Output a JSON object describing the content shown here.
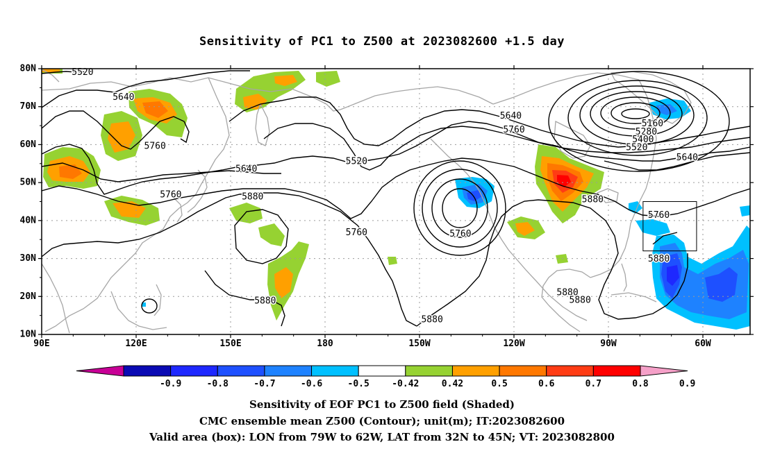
{
  "title": "Sensitivity of PC1 to Z500 at 2023082600 +1.5 day",
  "lat_labels": [
    "80N",
    "70N",
    "60N",
    "50N",
    "40N",
    "30N",
    "20N",
    "10N"
  ],
  "lon_labels": [
    "90E",
    "120E",
    "150E",
    "180",
    "150W",
    "120W",
    "90W",
    "60W"
  ],
  "contour_labels": [
    {
      "text": "5520",
      "lon": 103,
      "lat": 79.0
    },
    {
      "text": "5640",
      "lon": 116,
      "lat": 72.4
    },
    {
      "text": "5760",
      "lon": 126,
      "lat": 59.5
    },
    {
      "text": "5640",
      "lon": 155,
      "lat": 53.5
    },
    {
      "text": "5760",
      "lon": 131,
      "lat": 46.7
    },
    {
      "text": "5880",
      "lon": 157,
      "lat": 46.2
    },
    {
      "text": "5760",
      "lon": 190,
      "lat": 36.8
    },
    {
      "text": "5520",
      "lon": 190,
      "lat": 55.5
    },
    {
      "text": "5640",
      "lon": 239,
      "lat": 67.5
    },
    {
      "text": "5760",
      "lon": 240,
      "lat": 63.8
    },
    {
      "text": "5760",
      "lon": 223,
      "lat": 36.4
    },
    {
      "text": "5880",
      "lon": 265,
      "lat": 45.5
    },
    {
      "text": "5160",
      "lon": 284,
      "lat": 65.5
    },
    {
      "text": "5280",
      "lon": 282,
      "lat": 63.3
    },
    {
      "text": "5400",
      "lon": 281,
      "lat": 61.3
    },
    {
      "text": "5520",
      "lon": 279,
      "lat": 59.2
    },
    {
      "text": "5640",
      "lon": 295,
      "lat": 56.5
    },
    {
      "text": "5760",
      "lon": 286,
      "lat": 41.3
    },
    {
      "text": "5880",
      "lon": 286,
      "lat": 29.8
    },
    {
      "text": "5880",
      "lon": 257,
      "lat": 21.0
    },
    {
      "text": "5880",
      "lon": 261,
      "lat": 19.0
    },
    {
      "text": "5880",
      "lon": 161,
      "lat": 18.8
    },
    {
      "text": "5880",
      "lon": 214,
      "lat": 13.8
    }
  ],
  "colorbar": {
    "labels": [
      "-0.9",
      "-0.8",
      "-0.7",
      "-0.6",
      "-0.5",
      "-0.42",
      "0.42",
      "0.5",
      "0.6",
      "0.7",
      "0.8",
      "0.9"
    ],
    "colors": [
      "#0a0ab4",
      "#1e28ff",
      "#1e50ff",
      "#1e82ff",
      "#00c0ff",
      "#ffffff",
      "#96d232",
      "#ffa000",
      "#ff7800",
      "#ff3c14",
      "#ff0000"
    ],
    "left_arrow_color": "#c80096",
    "right_arrow_color": "#f5a0c8"
  },
  "caption_lines": [
    "Sensitivity of EOF PC1 to Z500 field (Shaded)",
    "CMC ensemble mean Z500 (Contour); unit(m); IT:2023082600",
    "Valid area (box): LON from 79W to 62W, LAT from 32N to 45N; VT: 2023082800"
  ],
  "valid_box": {
    "lon_min": 281,
    "lon_max": 298,
    "lat_min": 32,
    "lat_max": 45
  },
  "map_extent": {
    "lon_min": 90,
    "lon_max": 315,
    "lat_min": 10,
    "lat_max": 80
  }
}
